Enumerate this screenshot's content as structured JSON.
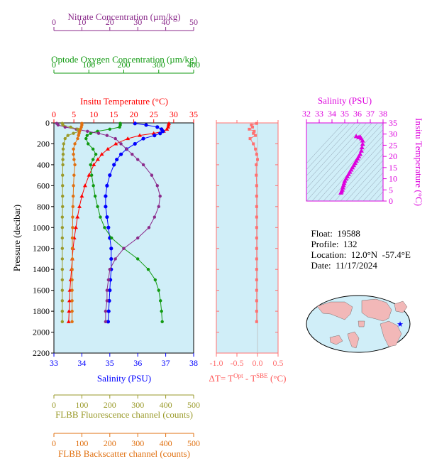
{
  "colors": {
    "nitrate": "#8b2a8b",
    "oxygen": "#119a11",
    "temperature": "#ff0000",
    "salinity": "#0000ff",
    "fluorescence": "#9a9a2a",
    "backscatter": "#e07010",
    "delta_t": "#ff7070",
    "ts_magenta": "#dd00dd",
    "panel_bg": "#d0eef8"
  },
  "info": {
    "float_label": "Float:",
    "float": "19588",
    "profile_label": "Profile:",
    "profile": "132",
    "location_label": "Location:",
    "location": "12.0°N  -57.4°E",
    "date_label": "Date:",
    "date": "11/17/2024"
  },
  "chart_data": [
    {
      "type": "line",
      "id": "main_profile",
      "ylabel": "Pressure (decibar)",
      "ylim": [
        2200,
        0
      ],
      "yticks": [
        0,
        200,
        400,
        600,
        800,
        1000,
        1200,
        1400,
        1600,
        1800,
        2000,
        2200
      ],
      "grid": false,
      "axes": {
        "nitrate": {
          "label": "Nitrate Concentration (µm/kg)",
          "range": [
            0,
            50
          ],
          "ticks": [
            0,
            10,
            20,
            30,
            40,
            50
          ]
        },
        "oxygen": {
          "label": "Optode Oxygen Concentration (µm/kg)",
          "range": [
            0,
            400
          ],
          "ticks": [
            0,
            100,
            200,
            300,
            400
          ]
        },
        "temperature": {
          "label": "Insitu Temperature (°C)",
          "range": [
            0,
            35
          ],
          "ticks": [
            0,
            5,
            10,
            15,
            20,
            25,
            30,
            35
          ]
        },
        "salinity": {
          "label": "Salinity (PSU)",
          "range": [
            33,
            38
          ],
          "ticks": [
            33,
            34,
            35,
            36,
            37,
            38
          ]
        },
        "fluorescence": {
          "label": "FLBB Fluorescence channel (counts)",
          "range": [
            0,
            500
          ],
          "ticks": [
            0,
            100,
            200,
            300,
            400,
            500
          ]
        },
        "backscatter": {
          "label": "FLBB Backscatter channel (counts)",
          "range": [
            0,
            500
          ],
          "ticks": [
            0,
            100,
            200,
            300,
            400,
            500
          ]
        }
      },
      "series": [
        {
          "axis": "temperature",
          "color": "#ff0000",
          "pressure": [
            5,
            20,
            40,
            60,
            80,
            100,
            120,
            150,
            200,
            250,
            300,
            350,
            400,
            500,
            600,
            700,
            800,
            900,
            1000,
            1100,
            1200,
            1300,
            1400,
            1500,
            1600,
            1700,
            1800,
            1900
          ],
          "values": [
            28.8,
            28.7,
            28.6,
            28.3,
            27.5,
            25.0,
            21.5,
            18.5,
            15.5,
            13.5,
            12.0,
            11.0,
            10.0,
            8.8,
            7.8,
            7.0,
            6.4,
            5.9,
            5.5,
            5.1,
            4.8,
            4.6,
            4.4,
            4.2,
            4.0,
            3.9,
            3.8,
            3.7
          ]
        },
        {
          "axis": "salinity",
          "color": "#0000ff",
          "pressure": [
            5,
            20,
            40,
            60,
            80,
            100,
            120,
            150,
            200,
            250,
            300,
            350,
            400,
            500,
            600,
            700,
            800,
            900,
            1000,
            1100,
            1200,
            1300,
            1400,
            1500,
            1600,
            1700,
            1800,
            1900
          ],
          "values": [
            35.9,
            36.3,
            36.7,
            36.85,
            36.9,
            36.8,
            36.6,
            36.2,
            35.9,
            35.6,
            35.4,
            35.25,
            35.15,
            35.0,
            34.9,
            34.85,
            34.85,
            34.9,
            34.95,
            35.0,
            35.05,
            35.05,
            35.05,
            35.02,
            35.0,
            34.98,
            34.96,
            34.94
          ]
        },
        {
          "axis": "oxygen",
          "color": "#119a11",
          "pressure": [
            5,
            20,
            40,
            60,
            80,
            100,
            120,
            150,
            200,
            250,
            300,
            350,
            400,
            500,
            600,
            700,
            800,
            900,
            1000,
            1100,
            1200,
            1300,
            1400,
            1500,
            1600,
            1700,
            1800,
            1900
          ],
          "values": [
            190,
            190,
            188,
            160,
            125,
            105,
            95,
            92,
            98,
            112,
            120,
            112,
            105,
            108,
            113,
            118,
            125,
            133,
            145,
            165,
            200,
            240,
            270,
            290,
            300,
            305,
            308,
            310
          ]
        },
        {
          "axis": "nitrate",
          "color": "#8b2a8b",
          "pressure": [
            5,
            20,
            40,
            60,
            80,
            100,
            120,
            150,
            200,
            250,
            300,
            350,
            400,
            500,
            600,
            700,
            800,
            900,
            1000,
            1100,
            1200,
            1300,
            1400,
            1500,
            1600,
            1700,
            1800,
            1900
          ],
          "values": [
            1,
            1.5,
            4,
            8,
            12,
            16,
            19,
            22,
            24,
            26,
            28,
            30,
            32,
            35,
            37,
            38,
            37.5,
            36,
            34,
            30,
            25,
            22,
            20,
            19.5,
            19,
            19,
            18.5,
            18.5
          ]
        },
        {
          "axis": "fluorescence",
          "color": "#9a9a2a",
          "pressure": [
            5,
            20,
            40,
            60,
            80,
            100,
            120,
            150,
            200,
            250,
            300,
            350,
            400,
            500,
            600,
            700,
            800,
            900,
            1000,
            1100,
            1200,
            1300,
            1400,
            1500,
            1600,
            1700,
            1800,
            1900
          ],
          "values": [
            30,
            32,
            60,
            85,
            90,
            70,
            50,
            40,
            35,
            33,
            33,
            32,
            32,
            31,
            31,
            31,
            31,
            30,
            30,
            30,
            30,
            30,
            30,
            30,
            30,
            30,
            30,
            30
          ]
        },
        {
          "axis": "backscatter",
          "color": "#e07010",
          "pressure": [
            5,
            20,
            40,
            60,
            80,
            100,
            120,
            150,
            200,
            250,
            300,
            350,
            400,
            500,
            600,
            700,
            800,
            900,
            1000,
            1100,
            1200,
            1300,
            1400,
            1500,
            1600,
            1700,
            1800,
            1900
          ],
          "values": [
            100,
            100,
            98,
            95,
            92,
            90,
            88,
            85,
            75,
            70,
            70,
            72,
            75,
            72,
            70,
            69,
            68,
            67,
            67,
            66,
            66,
            66,
            65,
            65,
            65,
            65,
            65,
            65
          ]
        }
      ]
    },
    {
      "type": "line",
      "id": "delta_t",
      "xlabel": "ΔT= T^Opt - T^SBE (°C)",
      "xlabel_parts": {
        "prefix": "ΔT= T",
        "sup1": "Opt",
        "mid": " - T",
        "sup2": "SBE",
        "suffix": " (°C)"
      },
      "xlim": [
        -1.0,
        0.5
      ],
      "xticks": [
        -1.0,
        -0.5,
        0.0,
        0.5
      ],
      "ylim": [
        2200,
        0
      ],
      "color": "#ff7070",
      "pressure": [
        5,
        20,
        40,
        60,
        80,
        100,
        120,
        150,
        200,
        250,
        300,
        350,
        400,
        500,
        600,
        700,
        800,
        900,
        1000,
        1100,
        1200,
        1300,
        1400,
        1500,
        1600,
        1700,
        1800,
        1900
      ],
      "values": [
        -0.02,
        -0.15,
        -0.12,
        -0.2,
        -0.08,
        -0.1,
        -0.05,
        -0.18,
        -0.1,
        -0.05,
        -0.02,
        0.0,
        -0.03,
        -0.03,
        -0.02,
        -0.02,
        -0.02,
        -0.02,
        -0.02,
        -0.02,
        -0.02,
        -0.02,
        -0.02,
        -0.02,
        -0.02,
        -0.02,
        -0.02,
        -0.02
      ]
    },
    {
      "type": "scatter",
      "id": "ts_diagram",
      "xlabel": "Salinity (PSU)",
      "ylabel": "Insitu Temperature (°C)",
      "xlim": [
        32,
        38
      ],
      "ylim": [
        0,
        35
      ],
      "xticks": [
        32,
        33,
        34,
        35,
        36,
        37,
        38
      ],
      "yticks": [
        0,
        5,
        10,
        15,
        20,
        25,
        30,
        35
      ],
      "color": "#dd00dd",
      "salinity": [
        34.7,
        34.75,
        34.8,
        34.85,
        34.9,
        34.95,
        35.0,
        35.1,
        35.2,
        35.3,
        35.4,
        35.5,
        35.6,
        35.7,
        35.8,
        35.9,
        36.0,
        36.1,
        36.2,
        36.3,
        36.35,
        36.4,
        36.4,
        36.3,
        36.1,
        35.9,
        36.2
      ],
      "temperature": [
        3.7,
        4.2,
        5.0,
        6.0,
        7.0,
        8.0,
        9.0,
        10.0,
        11.0,
        12.0,
        13.0,
        14.0,
        15.0,
        16.0,
        17.0,
        18.0,
        19.0,
        20.0,
        21.0,
        22.5,
        24.0,
        25.5,
        27.0,
        28.0,
        28.5,
        29.0,
        28.8
      ]
    }
  ]
}
